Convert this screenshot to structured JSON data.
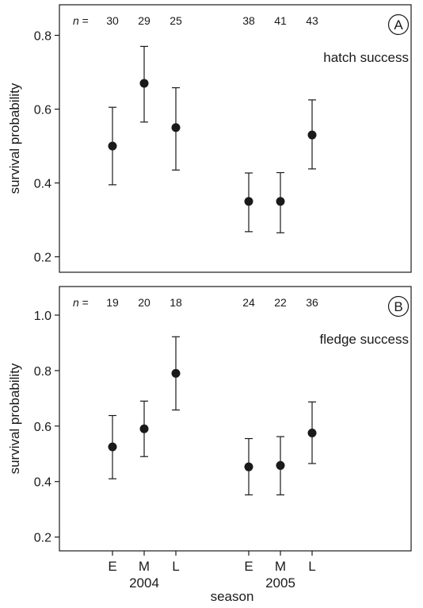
{
  "figure": {
    "xlabel": "season",
    "year_labels": [
      "2004",
      "2005"
    ],
    "n_prefix": "n",
    "n_equals": " ="
  },
  "chart_data": [
    {
      "type": "scatter",
      "panel_label": "A",
      "annotation": "hatch success",
      "ylabel": "survival probability",
      "ylim": [
        0.15,
        0.85
      ],
      "yticks": [
        "0.2",
        "0.4",
        "0.6",
        "0.8"
      ],
      "x_categories": [
        "E",
        "M",
        "L",
        "E",
        "M",
        "L"
      ],
      "x_groups": [
        "2004",
        "2004",
        "2004",
        "2005",
        "2005",
        "2005"
      ],
      "n_values": [
        "30",
        "29",
        "25",
        "38",
        "41",
        "43"
      ],
      "values": [
        0.5,
        0.67,
        0.55,
        0.35,
        0.35,
        0.53
      ],
      "error_low": [
        0.395,
        0.565,
        0.435,
        0.268,
        0.265,
        0.438
      ],
      "error_high": [
        0.605,
        0.77,
        0.658,
        0.427,
        0.428,
        0.625
      ],
      "grid": false,
      "legend": "none"
    },
    {
      "type": "scatter",
      "panel_label": "B",
      "annotation": "fledge success",
      "ylabel": "survival probability",
      "ylim": [
        0.11,
        1.1
      ],
      "yticks": [
        "0.2",
        "0.4",
        "0.6",
        "0.8",
        "1.0"
      ],
      "x_categories": [
        "E",
        "M",
        "L",
        "E",
        "M",
        "L"
      ],
      "x_groups": [
        "2004",
        "2004",
        "2004",
        "2005",
        "2005",
        "2005"
      ],
      "n_values": [
        "19",
        "20",
        "18",
        "24",
        "22",
        "36"
      ],
      "values": [
        0.525,
        0.59,
        0.79,
        0.453,
        0.458,
        0.575
      ],
      "error_low": [
        0.41,
        0.49,
        0.658,
        0.352,
        0.352,
        0.465
      ],
      "error_high": [
        0.638,
        0.69,
        0.922,
        0.555,
        0.562,
        0.687
      ],
      "grid": false,
      "legend": "none"
    }
  ]
}
